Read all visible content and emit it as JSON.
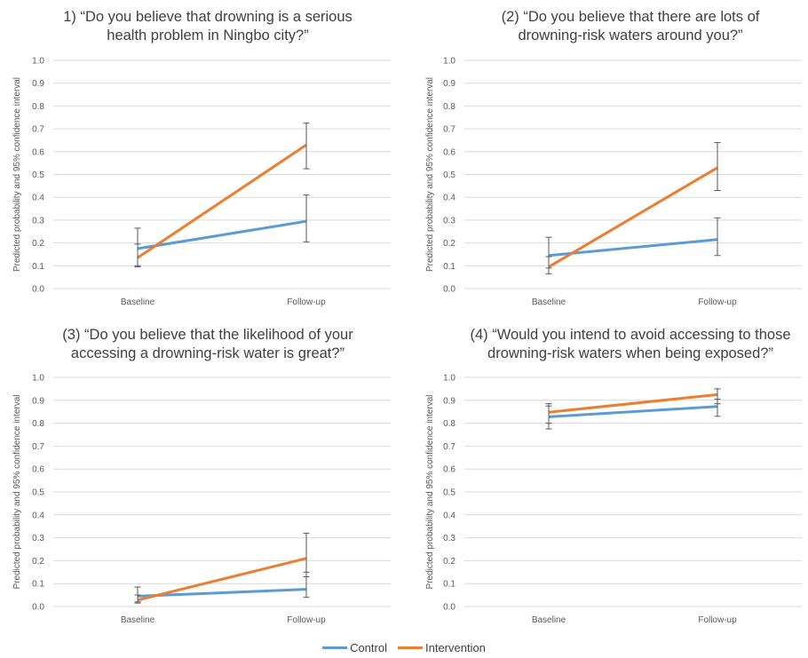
{
  "colors": {
    "control": "#5b9bd5",
    "intervention": "#ed7d31",
    "errorbar": "#595959",
    "grid": "#d9d9d9"
  },
  "legend": {
    "position": "bottom-center",
    "items": [
      {
        "label": "Control",
        "color": "#5b9bd5"
      },
      {
        "label": "Intervention",
        "color": "#ed7d31"
      }
    ]
  },
  "chart_data": [
    {
      "type": "line",
      "title_lines": [
        "1) “Do you believe that drowning is a serious",
        "health problem in Ningbo city?”"
      ],
      "xlabel": "",
      "ylabel": "Predicted probability and 95% confidence interval",
      "categories": [
        "Baseline",
        "Follow-up"
      ],
      "ylim": [
        0,
        1
      ],
      "yticks": [
        "0.0",
        "0.1",
        "0.2",
        "0.3",
        "0.4",
        "0.5",
        "0.6",
        "0.7",
        "0.8",
        "0.9",
        "1.0"
      ],
      "grid": true,
      "series": [
        {
          "name": "Control",
          "values": [
            0.175,
            0.295
          ],
          "lower": [
            0.1,
            0.205
          ],
          "upper": [
            0.195,
            0.41
          ]
        },
        {
          "name": "Intervention",
          "values": [
            0.135,
            0.63
          ],
          "lower": [
            0.095,
            0.525
          ],
          "upper": [
            0.265,
            0.725
          ]
        }
      ]
    },
    {
      "type": "line",
      "title_lines": [
        "(2) “Do you believe that there are lots of",
        "drowning-risk waters around you?”"
      ],
      "xlabel": "",
      "ylabel": "Predicted probability and 95% confidence interval",
      "categories": [
        "Baseline",
        "Follow-up"
      ],
      "ylim": [
        0,
        1
      ],
      "yticks": [
        "0.0",
        "0.1",
        "0.2",
        "0.3",
        "0.4",
        "0.5",
        "0.6",
        "0.7",
        "0.8",
        "0.9",
        "1.0"
      ],
      "grid": true,
      "series": [
        {
          "name": "Control",
          "values": [
            0.145,
            0.215
          ],
          "lower": [
            0.09,
            0.145
          ],
          "upper": [
            0.225,
            0.31
          ]
        },
        {
          "name": "Intervention",
          "values": [
            0.095,
            0.53
          ],
          "lower": [
            0.065,
            0.43
          ],
          "upper": [
            0.14,
            0.64
          ]
        }
      ]
    },
    {
      "type": "line",
      "title_lines": [
        "(3) “Do you believe that the likelihood of your",
        "accessing a drowning-risk water is great?”"
      ],
      "xlabel": "",
      "ylabel": "Predicted probability and 95% confidence interval",
      "categories": [
        "Baseline",
        "Follow-up"
      ],
      "ylim": [
        0,
        1
      ],
      "yticks": [
        "0.0",
        "0.1",
        "0.2",
        "0.3",
        "0.4",
        "0.5",
        "0.6",
        "0.7",
        "0.8",
        "0.9",
        "1.0"
      ],
      "grid": true,
      "series": [
        {
          "name": "Control",
          "values": [
            0.045,
            0.075
          ],
          "lower": [
            0.02,
            0.04
          ],
          "upper": [
            0.085,
            0.15
          ]
        },
        {
          "name": "Intervention",
          "values": [
            0.028,
            0.21
          ],
          "lower": [
            0.015,
            0.13
          ],
          "upper": [
            0.05,
            0.32
          ]
        }
      ]
    },
    {
      "type": "line",
      "title_lines": [
        "(4) “Would you intend to avoid accessing to those",
        "drowning-risk waters when being exposed?”"
      ],
      "xlabel": "",
      "ylabel": "Predicted probability and 95% confidence interval",
      "categories": [
        "Baseline",
        "Follow-up"
      ],
      "ylim": [
        0,
        1
      ],
      "yticks": [
        "0.0",
        "0.1",
        "0.2",
        "0.3",
        "0.4",
        "0.5",
        "0.6",
        "0.7",
        "0.8",
        "0.9",
        "1.0"
      ],
      "grid": true,
      "series": [
        {
          "name": "Control",
          "values": [
            0.828,
            0.873
          ],
          "lower": [
            0.775,
            0.83
          ],
          "upper": [
            0.875,
            0.905
          ]
        },
        {
          "name": "Intervention",
          "values": [
            0.848,
            0.925
          ],
          "lower": [
            0.8,
            0.885
          ],
          "upper": [
            0.885,
            0.95
          ]
        }
      ]
    }
  ]
}
